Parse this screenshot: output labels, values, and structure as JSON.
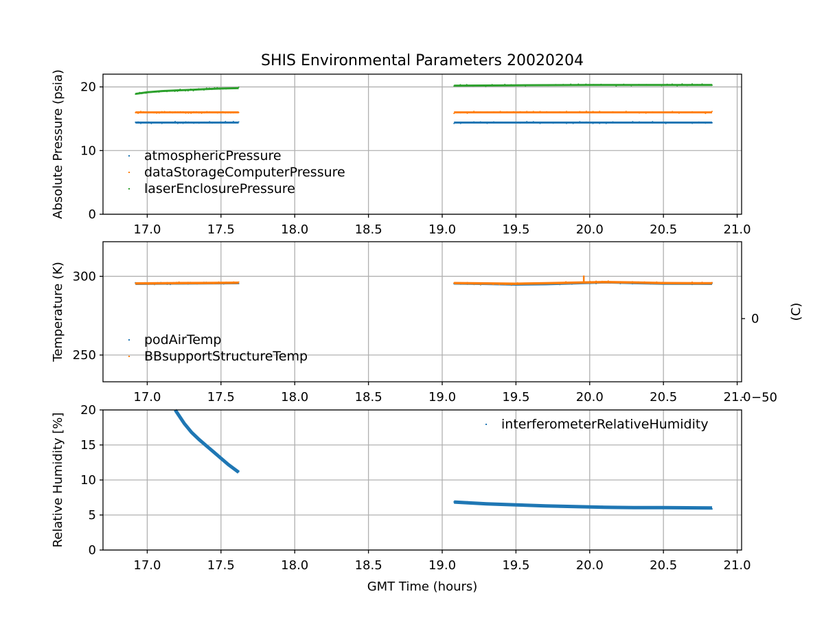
{
  "chart_data": {
    "type": "scatter",
    "title": "SHIS Environmental Parameters 20020204",
    "xlabel": "GMT Time (hours)",
    "xlim": [
      16.7,
      21.03
    ],
    "xticks": [
      17.0,
      17.5,
      18.0,
      18.5,
      19.0,
      19.5,
      20.0,
      20.5,
      21.0
    ],
    "xtick_labels": [
      "17.0",
      "17.5",
      "18.0",
      "18.5",
      "19.0",
      "19.5",
      "20.0",
      "20.5",
      "21.0"
    ],
    "panels": [
      {
        "id": "pressure",
        "ylabel": "Absolute Pressure (psia)",
        "ylim": [
          0,
          22
        ],
        "yticks": [
          0,
          10,
          20
        ],
        "ytick_labels": [
          "0",
          "10",
          "20"
        ],
        "legend_location": "lower-left",
        "series": [
          {
            "name": "atmosphericPressure",
            "color": "#1f77b4",
            "segments": [
              {
                "x": [
                  16.92,
                  17.62
                ],
                "y": [
                  14.4,
                  14.4
                ]
              },
              {
                "x": [
                  19.08,
                  20.83
                ],
                "y": [
                  14.4,
                  14.4
                ]
              }
            ]
          },
          {
            "name": "dataStorageComputerPressure",
            "color": "#ff7f0e",
            "segments": [
              {
                "x": [
                  16.92,
                  17.62
                ],
                "y": [
                  16.0,
                  16.0
                ]
              },
              {
                "x": [
                  19.08,
                  20.83
                ],
                "y": [
                  16.0,
                  16.0
                ]
              }
            ]
          },
          {
            "name": "laserEnclosurePressure",
            "color": "#2ca02c",
            "segments": [
              {
                "x": [
                  16.92,
                  17.0,
                  17.1,
                  17.2,
                  17.3,
                  17.4,
                  17.5,
                  17.62
                ],
                "y": [
                  18.9,
                  19.15,
                  19.35,
                  19.45,
                  19.55,
                  19.65,
                  19.75,
                  19.8
                ]
              },
              {
                "x": [
                  19.08,
                  19.5,
                  20.0,
                  20.5,
                  20.83
                ],
                "y": [
                  20.2,
                  20.25,
                  20.3,
                  20.3,
                  20.3
                ]
              }
            ]
          }
        ]
      },
      {
        "id": "temperature",
        "ylabel": "Temperature (K)",
        "ylim": [
          233,
          322
        ],
        "yticks": [
          250,
          300
        ],
        "ytick_labels": [
          "250",
          "300"
        ],
        "right_ylabel": "(C)",
        "right_yticks": [
          -50,
          0
        ],
        "right_ytick_labels": [
          "−50",
          "0"
        ],
        "legend_location": "lower-left",
        "series": [
          {
            "name": "podAirTemp",
            "color": "#1f77b4",
            "segments": [
              {
                "x": [
                  16.92,
                  17.2,
                  17.4,
                  17.62
                ],
                "y": [
                  295.3,
                  295.5,
                  295.6,
                  295.7
                ]
              },
              {
                "x": [
                  19.08,
                  19.3,
                  19.5,
                  19.7,
                  19.9,
                  20.1,
                  20.3,
                  20.5,
                  20.83
                ],
                "y": [
                  295.5,
                  295.2,
                  294.8,
                  295.1,
                  295.6,
                  296.2,
                  295.8,
                  295.4,
                  295.3
                ]
              }
            ]
          },
          {
            "name": "BBsupportStructureTemp",
            "color": "#ff7f0e",
            "segments": [
              {
                "x": [
                  16.92,
                  17.2,
                  17.4,
                  17.62
                ],
                "y": [
                  295.5,
                  295.7,
                  295.8,
                  295.9
                ]
              },
              {
                "x": [
                  19.08,
                  19.3,
                  19.5,
                  19.7,
                  19.9,
                  20.1,
                  20.3,
                  20.5,
                  20.83
                ],
                "y": [
                  295.7,
                  295.5,
                  295.3,
                  295.6,
                  296.0,
                  296.4,
                  296.1,
                  295.7,
                  295.6
                ]
              }
            ]
          }
        ],
        "spikes": [
          {
            "series": "BBsupportStructureTemp",
            "x": 19.96,
            "y_from": 296.0,
            "y_to": 300.5
          }
        ]
      },
      {
        "id": "humidity",
        "ylabel": "Relative Humidity [%]",
        "ylim": [
          0,
          20
        ],
        "yticks": [
          0,
          5,
          10,
          15,
          20
        ],
        "ytick_labels": [
          "0",
          "5",
          "10",
          "15",
          "20"
        ],
        "legend_location": "upper-right",
        "series": [
          {
            "name": "interferometerRelativeHumidity",
            "color": "#1f77b4",
            "segments": [
              {
                "x": [
                  17.19,
                  17.25,
                  17.3,
                  17.35,
                  17.4,
                  17.45,
                  17.5,
                  17.55,
                  17.62
                ],
                "y": [
                  20.0,
                  18.1,
                  16.8,
                  15.8,
                  14.9,
                  14.0,
                  13.1,
                  12.2,
                  11.1
                ]
              },
              {
                "x": [
                  19.08,
                  19.3,
                  19.5,
                  19.7,
                  19.9,
                  20.1,
                  20.3,
                  20.5,
                  20.83
                ],
                "y": [
                  6.85,
                  6.6,
                  6.45,
                  6.3,
                  6.2,
                  6.1,
                  6.05,
                  6.05,
                  6.0
                ]
              }
            ]
          }
        ]
      }
    ]
  }
}
